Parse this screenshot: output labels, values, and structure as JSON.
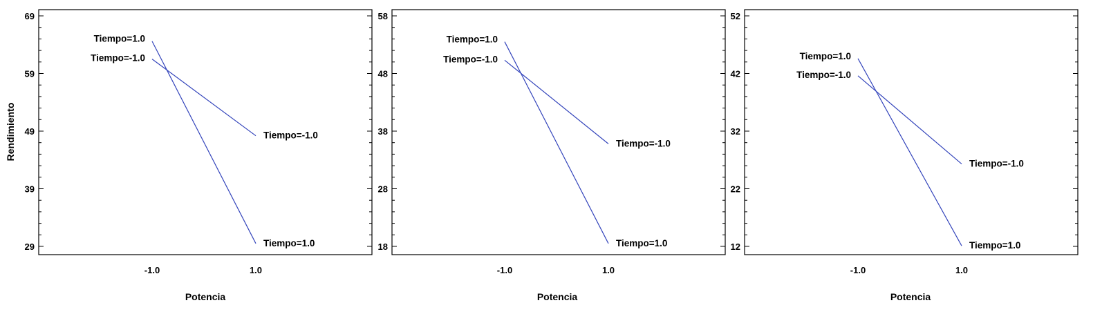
{
  "ylabel": "Rendimiento",
  "colors": {
    "line": "#3344bb",
    "frame": "#000000"
  },
  "chart_data": [
    {
      "type": "line",
      "xlabel": "Potencia",
      "xticks": [
        "-1.0",
        "1.0"
      ],
      "yticks": [
        "29",
        "39",
        "49",
        "59",
        "69"
      ],
      "ylim": [
        29,
        69
      ],
      "x": [
        -1.0,
        1.0
      ],
      "series": [
        {
          "name": "Tiempo=1.0",
          "values": [
            64.6,
            29.5
          ]
        },
        {
          "name": "Tiempo=-1.0",
          "values": [
            61.5,
            48.2
          ]
        }
      ]
    },
    {
      "type": "line",
      "xlabel": "Potencia",
      "xticks": [
        "-1.0",
        "1.0"
      ],
      "yticks": [
        "18",
        "28",
        "38",
        "48",
        "58"
      ],
      "ylim": [
        18,
        58
      ],
      "x": [
        -1.0,
        1.0
      ],
      "series": [
        {
          "name": "Tiempo=1.0",
          "values": [
            53.5,
            18.5
          ]
        },
        {
          "name": "Tiempo=-1.0",
          "values": [
            50.3,
            35.8
          ]
        }
      ]
    },
    {
      "type": "line",
      "xlabel": "Potencia",
      "xticks": [
        "-1.0",
        "1.0"
      ],
      "yticks": [
        "12",
        "22",
        "32",
        "42",
        "52"
      ],
      "ylim": [
        12,
        52
      ],
      "x": [
        -1.0,
        1.0
      ],
      "series": [
        {
          "name": "Tiempo=1.0",
          "values": [
            44.6,
            12.1
          ]
        },
        {
          "name": "Tiempo=-1.0",
          "values": [
            41.6,
            26.3
          ]
        }
      ]
    }
  ]
}
